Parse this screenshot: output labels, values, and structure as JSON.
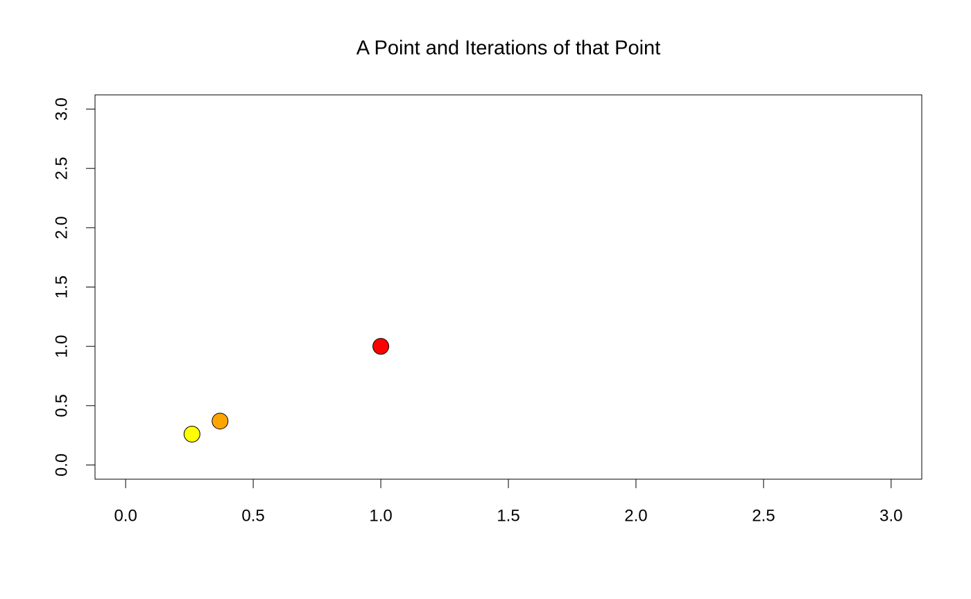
{
  "chart_data": {
    "type": "scatter",
    "title": "A Point and Iterations of that Point",
    "x": [
      1,
      0.37,
      0.26
    ],
    "values": [
      1,
      0.37,
      0.26
    ],
    "colors": [
      "#ff0000",
      "#ffa500",
      "#ffff00"
    ],
    "xlim": [
      -0.12,
      3.12
    ],
    "ylim": [
      -0.12,
      3.12
    ],
    "xticks": [
      {
        "value": 0,
        "label": "0.0"
      },
      0.5,
      {
        "value": 1,
        "label": "1.0"
      },
      1.5,
      {
        "value": 2,
        "label": "2.0"
      },
      2.5,
      {
        "value": 3,
        "label": "3.0"
      }
    ],
    "yticks": [
      {
        "value": 0,
        "label": "0.0"
      },
      0.5,
      {
        "value": 1,
        "label": "1.0"
      },
      1.5,
      {
        "value": 2,
        "label": "2.0"
      },
      2.5,
      {
        "value": 3,
        "label": "3.0"
      }
    ]
  }
}
